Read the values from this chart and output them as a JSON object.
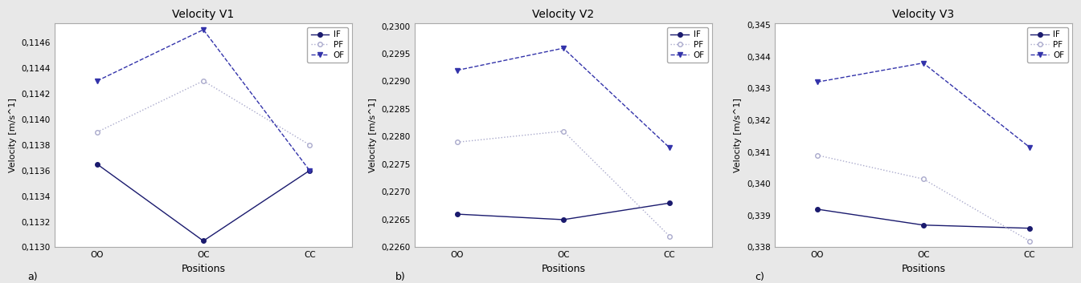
{
  "charts": [
    {
      "title": "Velocity V1",
      "ylabel": "Velocity [m/s^1]",
      "xlabel": "Positions",
      "label": "a)",
      "positions": [
        "OO",
        "OC",
        "CC"
      ],
      "IF": [
        0.11365,
        0.11305,
        0.1136
      ],
      "PF": [
        0.1139,
        0.1143,
        0.1138
      ],
      "OF": [
        0.1143,
        0.1147,
        0.1136
      ],
      "ylim": [
        0.113,
        0.11475
      ],
      "yticks": [
        0.113,
        0.1132,
        0.1134,
        0.1136,
        0.1138,
        0.114,
        0.1142,
        0.1144,
        0.1146
      ],
      "ytick_labels": [
        "0,1130",
        "0,1132",
        "0,1134",
        "0,1136",
        "0,1138",
        "0,1140",
        "0,1142",
        "0,1144",
        "0,1146"
      ]
    },
    {
      "title": "Velocity V2",
      "ylabel": "Velocity [m/s^1]",
      "xlabel": "Positions",
      "label": "b)",
      "positions": [
        "OO",
        "OC",
        "CC"
      ],
      "IF": [
        0.2266,
        0.2265,
        0.2268
      ],
      "PF": [
        0.2279,
        0.2281,
        0.2262
      ],
      "OF": [
        0.2292,
        0.2296,
        0.2278
      ],
      "ylim": [
        0.226,
        0.23005
      ],
      "yticks": [
        0.226,
        0.2265,
        0.227,
        0.2275,
        0.228,
        0.2285,
        0.229,
        0.2295,
        0.23
      ],
      "ytick_labels": [
        "0,2260",
        "0,2265",
        "0,2270",
        "0,2275",
        "0,2280",
        "0,2285",
        "0,2290",
        "0,2295",
        "0,2300"
      ]
    },
    {
      "title": "Velocity V3",
      "ylabel": "Velocity [m/s^1]",
      "xlabel": "Positions",
      "label": "c)",
      "positions": [
        "OO",
        "OC",
        "CC"
      ],
      "IF": [
        0.3392,
        0.3387,
        0.3386
      ],
      "PF": [
        0.3409,
        0.34015,
        0.3382
      ],
      "OF": [
        0.3432,
        0.3438,
        0.34115
      ],
      "ylim": [
        0.338,
        0.34505
      ],
      "yticks": [
        0.338,
        0.3385,
        0.339,
        0.3395,
        0.34,
        0.3405,
        0.341,
        0.3415,
        0.342,
        0.3425,
        0.343,
        0.3435,
        0.344,
        0.3445,
        0.345
      ],
      "ytick_labels": [
        "0,338",
        "",
        "0,339",
        "",
        "0,340",
        "",
        "0,341",
        "",
        "0,342",
        "",
        "0,343",
        "",
        "0,344",
        "",
        "0,345"
      ]
    }
  ],
  "line_color_IF": "#1a1a6e",
  "line_color_PF": "#aaaacc",
  "line_color_OF": "#3333aa",
  "fig_facecolor": "#e8e8e8",
  "plot_facecolor": "#ffffff"
}
